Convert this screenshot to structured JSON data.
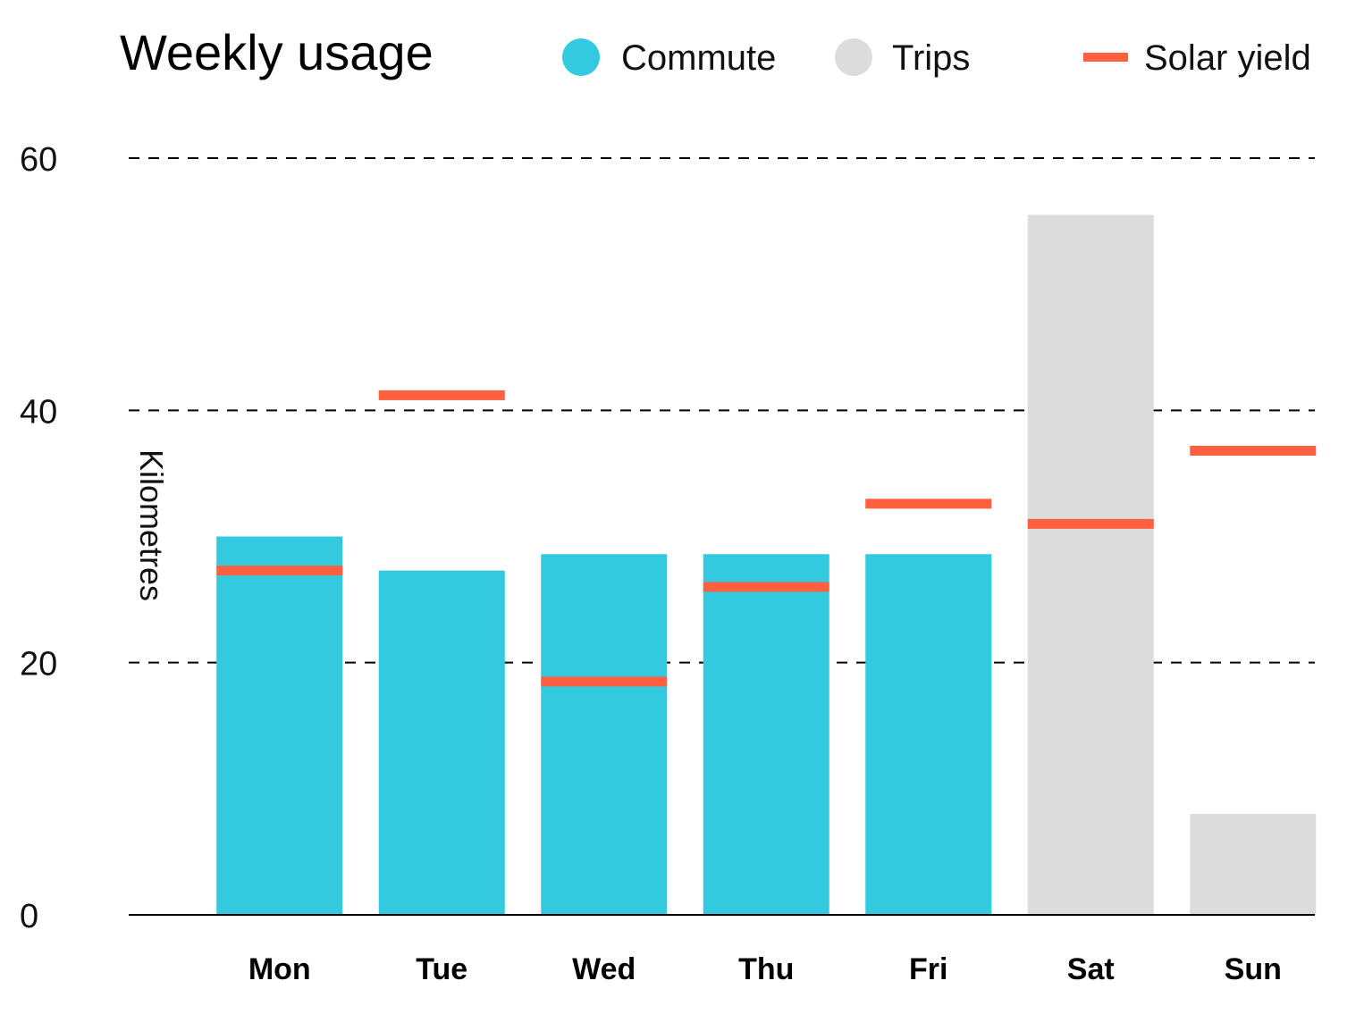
{
  "chart_data": {
    "type": "bar",
    "title": "Weekly usage",
    "ylabel": "Kilometres",
    "xlabel": "",
    "ylim": [
      0,
      60
    ],
    "yticks": [
      0,
      20,
      40,
      60
    ],
    "grid": "dashed horizontal",
    "legend_position": "top",
    "categories": [
      "Mon",
      "Tue",
      "Wed",
      "Thu",
      "Fri",
      "Sat",
      "Sun"
    ],
    "series": [
      {
        "name": "Commute",
        "kind": "bar",
        "color": "#33CADF",
        "values": [
          30,
          27.3,
          28.6,
          28.6,
          28.6,
          null,
          null
        ]
      },
      {
        "name": "Trips",
        "kind": "bar",
        "color": "#DCDCDC",
        "values": [
          null,
          null,
          null,
          null,
          null,
          55.5,
          8
        ]
      },
      {
        "name": "Solar yield",
        "kind": "marker",
        "color": "#FF6140",
        "values": [
          27.3,
          41.2,
          18.5,
          26,
          32.6,
          31,
          36.8
        ]
      }
    ]
  }
}
